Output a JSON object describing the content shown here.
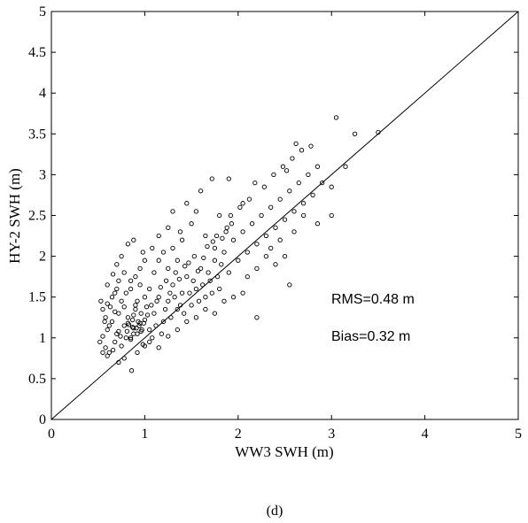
{
  "chart_data": {
    "type": "scatter",
    "xlabel": "WW3 SWH (m)",
    "ylabel": "HY-2 SWH (m)",
    "xlim": [
      0,
      5
    ],
    "ylim": [
      0,
      5
    ],
    "x_ticks": [
      "0",
      "1",
      "2",
      "3",
      "4",
      "5"
    ],
    "y_ticks": [
      "0",
      "0.5",
      "1",
      "1.5",
      "2",
      "2.5",
      "3",
      "3.5",
      "4",
      "4.5",
      "5"
    ],
    "grid": false,
    "marker": "open-circle",
    "color": "#000000",
    "reference_line": "y = x",
    "annotations": [
      "RMS=0.48 m",
      "Bias=0.32 m"
    ],
    "caption": "(d)",
    "series": [
      {
        "points": [
          [
            0.52,
            0.95
          ],
          [
            0.55,
            1.02
          ],
          [
            0.58,
            0.88
          ],
          [
            0.6,
            1.1
          ],
          [
            0.62,
            0.82
          ],
          [
            0.65,
            1.2
          ],
          [
            0.68,
            0.95
          ],
          [
            0.7,
            1.05
          ],
          [
            0.72,
            1.3
          ],
          [
            0.75,
            0.9
          ],
          [
            0.78,
            1.15
          ],
          [
            0.8,
            1.0
          ],
          [
            0.82,
            1.25
          ],
          [
            0.85,
            0.98
          ],
          [
            0.88,
            1.12
          ],
          [
            0.9,
            1.35
          ],
          [
            0.92,
            1.05
          ],
          [
            0.95,
            1.18
          ],
          [
            0.98,
            0.92
          ],
          [
            1.0,
            1.22
          ],
          [
            0.55,
            1.35
          ],
          [
            0.6,
            1.42
          ],
          [
            0.65,
            1.5
          ],
          [
            0.7,
            1.6
          ],
          [
            0.75,
            1.45
          ],
          [
            0.8,
            1.55
          ],
          [
            0.85,
            1.7
          ],
          [
            0.9,
            1.4
          ],
          [
            0.95,
            1.65
          ],
          [
            1.0,
            1.5
          ],
          [
            0.58,
            1.25
          ],
          [
            0.62,
            1.15
          ],
          [
            0.68,
            1.32
          ],
          [
            0.72,
            1.08
          ],
          [
            0.78,
            1.38
          ],
          [
            0.82,
            1.18
          ],
          [
            0.88,
            1.28
          ],
          [
            0.92,
            1.45
          ],
          [
            0.96,
            1.3
          ],
          [
            1.02,
            1.38
          ],
          [
            0.53,
            1.45
          ],
          [
            0.6,
            1.65
          ],
          [
            0.66,
            1.78
          ],
          [
            0.7,
            1.9
          ],
          [
            0.75,
            2.0
          ],
          [
            0.82,
            2.15
          ],
          [
            0.88,
            2.2
          ],
          [
            0.95,
            1.85
          ],
          [
            1.05,
            1.1
          ],
          [
            1.1,
            1.3
          ],
          [
            1.15,
            1.5
          ],
          [
            1.2,
            1.2
          ],
          [
            1.25,
            1.45
          ],
          [
            1.3,
            1.65
          ],
          [
            1.35,
            1.35
          ],
          [
            1.4,
            1.55
          ],
          [
            1.45,
            1.75
          ],
          [
            1.5,
            1.4
          ],
          [
            1.55,
            1.6
          ],
          [
            1.6,
            1.85
          ],
          [
            1.65,
            1.5
          ],
          [
            1.7,
            1.7
          ],
          [
            1.75,
            1.95
          ],
          [
            1.8,
            1.6
          ],
          [
            1.05,
            1.6
          ],
          [
            1.1,
            1.8
          ],
          [
            1.15,
            1.95
          ],
          [
            1.2,
            2.05
          ],
          [
            1.25,
            1.85
          ],
          [
            1.3,
            2.1
          ],
          [
            1.35,
            1.95
          ],
          [
            1.4,
            2.2
          ],
          [
            1.08,
            1.0
          ],
          [
            1.12,
            1.15
          ],
          [
            1.18,
            1.05
          ],
          [
            1.22,
            1.35
          ],
          [
            1.28,
            1.25
          ],
          [
            1.32,
            1.5
          ],
          [
            1.38,
            1.4
          ],
          [
            1.42,
            1.3
          ],
          [
            1.48,
            1.55
          ],
          [
            1.52,
            1.7
          ],
          [
            1.58,
            1.45
          ],
          [
            1.62,
            1.65
          ],
          [
            1.68,
            1.8
          ],
          [
            1.72,
            1.55
          ],
          [
            1.78,
            1.75
          ],
          [
            1.82,
            1.9
          ],
          [
            1.85,
            2.05
          ],
          [
            1.9,
            1.8
          ],
          [
            1.95,
            2.2
          ],
          [
            2.0,
            1.95
          ],
          [
            2.05,
            2.3
          ],
          [
            2.1,
            2.05
          ],
          [
            2.15,
            2.4
          ],
          [
            2.2,
            2.15
          ],
          [
            2.25,
            2.5
          ],
          [
            2.3,
            2.25
          ],
          [
            2.35,
            2.6
          ],
          [
            2.4,
            2.35
          ],
          [
            2.45,
            2.7
          ],
          [
            2.5,
            2.45
          ],
          [
            2.55,
            2.8
          ],
          [
            2.6,
            2.55
          ],
          [
            2.65,
            2.9
          ],
          [
            2.7,
            2.65
          ],
          [
            2.75,
            3.0
          ],
          [
            2.8,
            2.75
          ],
          [
            2.85,
            3.1
          ],
          [
            2.9,
            2.9
          ],
          [
            1.88,
            2.35
          ],
          [
            1.92,
            2.5
          ],
          [
            2.02,
            2.6
          ],
          [
            2.12,
            2.7
          ],
          [
            2.18,
            2.9
          ],
          [
            2.28,
            2.85
          ],
          [
            2.38,
            3.0
          ],
          [
            2.48,
            3.1
          ],
          [
            2.58,
            3.2
          ],
          [
            2.68,
            3.3
          ],
          [
            2.2,
            1.25
          ],
          [
            2.55,
            1.65
          ],
          [
            2.5,
            2.0
          ],
          [
            2.4,
            1.9
          ],
          [
            2.6,
            2.3
          ],
          [
            2.7,
            2.5
          ],
          [
            2.85,
            2.4
          ],
          [
            3.0,
            2.5
          ],
          [
            3.05,
            3.7
          ],
          [
            3.5,
            3.52
          ],
          [
            3.25,
            3.5
          ],
          [
            3.15,
            3.1
          ],
          [
            3.0,
            2.85
          ],
          [
            2.78,
            3.35
          ],
          [
            2.62,
            3.38
          ],
          [
            2.52,
            3.05
          ],
          [
            1.3,
            2.55
          ],
          [
            1.45,
            2.65
          ],
          [
            1.6,
            2.8
          ],
          [
            1.8,
            2.5
          ],
          [
            1.9,
            2.95
          ],
          [
            2.05,
            2.65
          ],
          [
            1.72,
            2.95
          ],
          [
            1.55,
            2.55
          ],
          [
            1.38,
            2.3
          ],
          [
            1.5,
            2.4
          ],
          [
            1.65,
            2.25
          ],
          [
            1.75,
            2.1
          ],
          [
            1.25,
            2.35
          ],
          [
            1.15,
            2.25
          ],
          [
            1.08,
            2.1
          ],
          [
            1.0,
            1.95
          ],
          [
            0.98,
            2.05
          ],
          [
            0.9,
            1.75
          ],
          [
            0.85,
            1.6
          ],
          [
            0.78,
            1.8
          ],
          [
            0.72,
            1.7
          ],
          [
            0.68,
            1.55
          ],
          [
            0.63,
            1.38
          ],
          [
            0.57,
            1.2
          ],
          [
            0.55,
            0.82
          ],
          [
            0.6,
            0.78
          ],
          [
            0.66,
            0.85
          ],
          [
            0.72,
            0.7
          ],
          [
            0.78,
            0.75
          ],
          [
            0.86,
            0.6
          ],
          [
            0.92,
            0.82
          ],
          [
            1.0,
            0.9
          ],
          [
            1.05,
            0.95
          ],
          [
            1.15,
            0.88
          ],
          [
            1.25,
            1.02
          ],
          [
            1.35,
            1.1
          ],
          [
            1.45,
            1.2
          ],
          [
            1.55,
            1.25
          ],
          [
            1.65,
            1.35
          ],
          [
            1.75,
            1.3
          ],
          [
            1.85,
            1.45
          ],
          [
            1.95,
            1.5
          ],
          [
            2.05,
            1.55
          ],
          [
            2.1,
            1.75
          ],
          [
            2.2,
            1.85
          ],
          [
            2.3,
            2.0
          ],
          [
            2.35,
            2.1
          ],
          [
            2.45,
            2.2
          ],
          [
            0.74,
            1.02
          ],
          [
            0.81,
            1.08
          ],
          [
            0.87,
            1.13
          ],
          [
            0.93,
            1.2
          ],
          [
            0.97,
            1.1
          ],
          [
            1.03,
            1.28
          ],
          [
            1.07,
            1.4
          ],
          [
            1.13,
            1.45
          ],
          [
            1.17,
            1.62
          ],
          [
            1.23,
            1.7
          ],
          [
            1.27,
            1.55
          ],
          [
            1.33,
            1.8
          ],
          [
            1.37,
            1.72
          ],
          [
            1.43,
            1.88
          ],
          [
            1.47,
            1.92
          ],
          [
            1.53,
            2.0
          ],
          [
            1.57,
            1.82
          ],
          [
            1.63,
            1.98
          ],
          [
            1.67,
            2.12
          ],
          [
            1.73,
            2.18
          ],
          [
            1.77,
            2.25
          ],
          [
            1.83,
            2.22
          ],
          [
            1.87,
            2.3
          ],
          [
            1.93,
            2.4
          ],
          [
            0.85,
            1.0
          ],
          [
            0.88,
            1.05
          ],
          [
            0.91,
            1.12
          ],
          [
            0.94,
            1.15
          ],
          [
            0.96,
            1.08
          ],
          [
            0.99,
            1.18
          ],
          [
            0.83,
            1.16
          ],
          [
            0.87,
            1.22
          ]
        ]
      }
    ]
  }
}
